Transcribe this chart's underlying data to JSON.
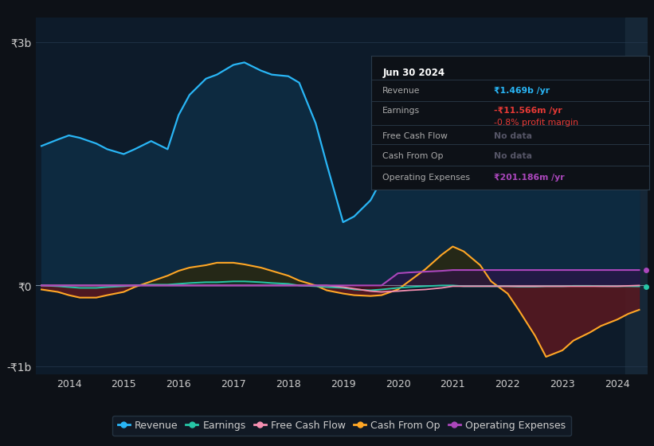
{
  "bg_color": "#0d1117",
  "plot_bg_color": "#0d1b2a",
  "grid_color": "#253a50",
  "text_color": "#cccccc",
  "revenue_color": "#29b6f6",
  "revenue_fill": "#0a2a40",
  "earnings_color": "#26c6a6",
  "cash_from_op_color": "#ffa726",
  "free_cash_flow_color": "#f48fb1",
  "operating_expenses_color": "#ab47bc",
  "legend_bg": "#131c28",
  "legend_border": "#2a3a4a",
  "years": [
    2013.5,
    2013.8,
    2014.0,
    2014.2,
    2014.5,
    2014.7,
    2015.0,
    2015.2,
    2015.5,
    2015.8,
    2016.0,
    2016.2,
    2016.5,
    2016.7,
    2017.0,
    2017.2,
    2017.5,
    2017.7,
    2018.0,
    2018.2,
    2018.5,
    2018.7,
    2019.0,
    2019.2,
    2019.5,
    2019.7,
    2020.0,
    2020.2,
    2020.5,
    2020.8,
    2021.0,
    2021.2,
    2021.5,
    2021.7,
    2022.0,
    2022.2,
    2022.5,
    2022.7,
    2023.0,
    2023.2,
    2023.5,
    2023.7,
    2024.0,
    2024.2,
    2024.4
  ],
  "revenue": [
    1.72,
    1.8,
    1.85,
    1.82,
    1.75,
    1.68,
    1.62,
    1.68,
    1.78,
    1.68,
    2.1,
    2.35,
    2.55,
    2.6,
    2.72,
    2.75,
    2.65,
    2.6,
    2.58,
    2.5,
    2.0,
    1.5,
    0.78,
    0.85,
    1.05,
    1.3,
    1.58,
    1.6,
    1.52,
    1.35,
    1.28,
    1.32,
    1.4,
    1.48,
    1.55,
    1.6,
    1.65,
    1.7,
    1.78,
    1.88,
    1.82,
    1.75,
    1.7,
    1.58,
    1.469
  ],
  "earnings": [
    0.0,
    -0.01,
    -0.02,
    -0.03,
    -0.03,
    -0.02,
    -0.01,
    0.0,
    0.01,
    0.01,
    0.02,
    0.03,
    0.04,
    0.04,
    0.05,
    0.05,
    0.04,
    0.03,
    0.02,
    0.0,
    -0.01,
    -0.02,
    -0.03,
    -0.05,
    -0.06,
    -0.05,
    -0.03,
    -0.02,
    -0.01,
    0.0,
    0.0,
    -0.01,
    -0.01,
    -0.01,
    -0.01,
    -0.015,
    -0.015,
    -0.01,
    -0.01,
    -0.005,
    -0.005,
    -0.008,
    -0.01,
    -0.01,
    -0.01156
  ],
  "cash_from_op": [
    -0.05,
    -0.08,
    -0.12,
    -0.15,
    -0.15,
    -0.12,
    -0.08,
    -0.02,
    0.05,
    0.12,
    0.18,
    0.22,
    0.25,
    0.28,
    0.28,
    0.26,
    0.22,
    0.18,
    0.12,
    0.06,
    0.0,
    -0.06,
    -0.1,
    -0.12,
    -0.13,
    -0.12,
    -0.05,
    0.05,
    0.2,
    0.38,
    0.48,
    0.42,
    0.25,
    0.05,
    -0.1,
    -0.3,
    -0.62,
    -0.88,
    -0.8,
    -0.68,
    -0.58,
    -0.5,
    -0.42,
    -0.35,
    -0.3
  ],
  "free_cash_flow": [
    0.0,
    0.0,
    0.0,
    0.0,
    0.0,
    0.0,
    0.0,
    0.0,
    0.0,
    0.0,
    0.0,
    0.0,
    0.0,
    0.0,
    0.0,
    0.0,
    0.0,
    0.0,
    0.0,
    0.0,
    0.0,
    0.0,
    -0.02,
    -0.04,
    -0.07,
    -0.08,
    -0.07,
    -0.06,
    -0.05,
    -0.03,
    -0.01,
    -0.01,
    -0.01,
    -0.01,
    -0.01,
    -0.01,
    -0.01,
    -0.01,
    -0.01,
    -0.01,
    -0.01,
    -0.01,
    -0.01,
    -0.005,
    0.0
  ],
  "operating_expenses": [
    0.0,
    0.0,
    0.0,
    0.0,
    0.0,
    0.0,
    0.0,
    0.0,
    0.0,
    0.0,
    0.0,
    0.0,
    0.0,
    0.0,
    0.0,
    0.0,
    0.0,
    0.0,
    0.0,
    0.0,
    0.0,
    0.0,
    0.0,
    0.0,
    0.0,
    0.0,
    0.15,
    0.16,
    0.17,
    0.18,
    0.19,
    0.19,
    0.19,
    0.19,
    0.19,
    0.19,
    0.19,
    0.19,
    0.19,
    0.19,
    0.19,
    0.19,
    0.19,
    0.19,
    0.19
  ],
  "ylim_min": -1.1,
  "ylim_max": 3.3,
  "xlim_min": 2013.4,
  "xlim_max": 2024.55,
  "xticks": [
    2014,
    2015,
    2016,
    2017,
    2018,
    2019,
    2020,
    2021,
    2022,
    2023,
    2024
  ],
  "yticks": [
    -1.0,
    0.0,
    3.0
  ],
  "ytick_labels": [
    "-₹1b",
    "₹0",
    "₹3b"
  ]
}
